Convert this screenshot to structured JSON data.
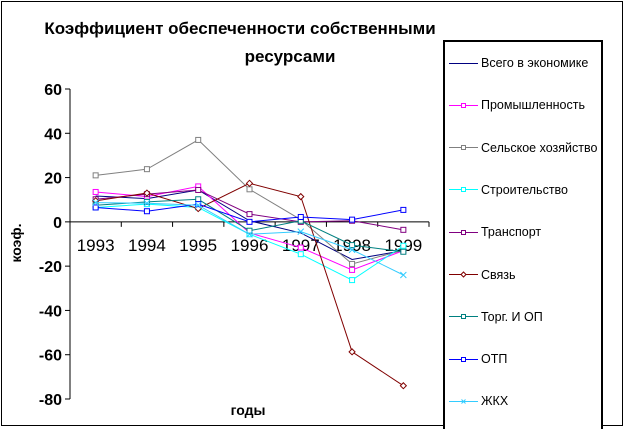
{
  "chart_data": {
    "type": "line",
    "title_line1": "Коэффициент обеспеченности собственными",
    "title_line2": "ресурсами",
    "xlabel": "годы",
    "ylabel": "коэф.",
    "ylim": [
      -80,
      60
    ],
    "yticks": [
      60,
      40,
      20,
      0,
      -20,
      -40,
      -60,
      -80
    ],
    "categories": [
      "1993",
      "1994",
      "1995",
      "1996",
      "1997",
      "1998",
      "1999"
    ],
    "legend_position": "right",
    "series": [
      {
        "name": "Всего в экономике",
        "color": "#000080",
        "marker": "none",
        "values": [
          11.7,
          10.5,
          14.4,
          0.5,
          -5,
          -17,
          -13
        ]
      },
      {
        "name": "Промышленность",
        "color": "#FF00FF",
        "marker": "square",
        "values": [
          13.5,
          11.4,
          16,
          -5,
          -11.6,
          -21.7,
          -13
        ]
      },
      {
        "name": "Сельское хозяйство",
        "color": "#808080",
        "marker": "square",
        "values": [
          21,
          23.8,
          37,
          14.7,
          1,
          -19,
          -12.8
        ]
      },
      {
        "name": "Строительство",
        "color": "#00FFFF",
        "marker": "square",
        "values": [
          6.5,
          8,
          6.5,
          -5.6,
          -14.6,
          -26.3,
          -10.8
        ]
      },
      {
        "name": "Транспорт",
        "color": "#800080",
        "marker": "square",
        "values": [
          10.2,
          12.5,
          14.4,
          3.5,
          0,
          0.5,
          -3.6
        ]
      },
      {
        "name": "Связь",
        "color": "#800000",
        "marker": "diamond",
        "values": [
          9.5,
          13,
          6,
          17.4,
          11.4,
          -58.7,
          -74
        ]
      },
      {
        "name": "Торг.  И ОП",
        "color": "#008080",
        "marker": "square",
        "values": [
          7.5,
          9,
          10.2,
          -4,
          0.5,
          -10.5,
          -13.5
        ]
      },
      {
        "name": "ОТП",
        "color": "#0000FF",
        "marker": "square",
        "values": [
          6.5,
          4.8,
          8,
          0,
          2.2,
          1,
          5.4
        ]
      },
      {
        "name": "ЖКХ",
        "color": "#33CCFF",
        "marker": "x",
        "values": [
          8.7,
          8.4,
          7.5,
          -5.6,
          -4.4,
          -12.6,
          -24
        ]
      }
    ]
  }
}
